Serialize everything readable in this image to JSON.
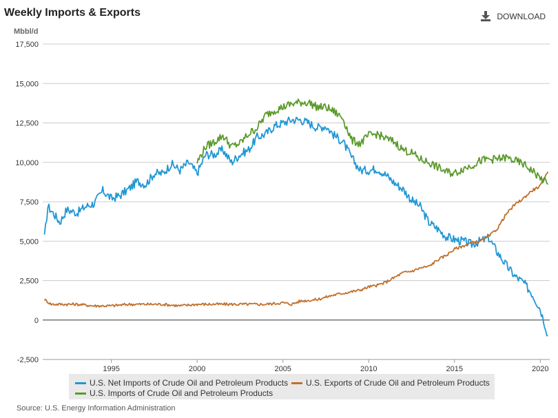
{
  "header": {
    "title": "Weekly Imports & Exports",
    "download_label": "DOWNLOAD"
  },
  "source": "Source: U.S. Energy Information Administration",
  "colors": {
    "net_imports": "#1f97d4",
    "exports": "#c0702c",
    "imports": "#5b9a2a",
    "grid": "#cccccc",
    "zero_line": "#333333"
  },
  "chart_data": {
    "type": "line",
    "title": "Weekly Imports & Exports",
    "ylabel": "Mbbl/d",
    "xlim": [
      1991.0,
      2020.55
    ],
    "ylim": [
      -2500,
      17500
    ],
    "ytick_labels": [
      "-2,500",
      "0",
      "2,500",
      "5,000",
      "7,500",
      "10,000",
      "12,500",
      "15,000",
      "17,500"
    ],
    "yticks": [
      -2500,
      0,
      2500,
      5000,
      7500,
      10000,
      12500,
      15000,
      17500
    ],
    "xticks": [
      1995,
      2000,
      2005,
      2010,
      2015,
      2020
    ],
    "xtick_labels": [
      "1995",
      "2000",
      "2005",
      "2010",
      "2015",
      "2020"
    ],
    "grid": true,
    "legend_position": "bottom",
    "series": [
      {
        "name": "U.S. Net Imports of Crude Oil and Petroleum Products",
        "color_key": "net_imports",
        "x": [
          1991.1,
          1991.3,
          1991.6,
          1992.0,
          1992.4,
          1993.0,
          1993.5,
          1994.0,
          1994.5,
          1995.0,
          1995.5,
          1996.0,
          1996.5,
          1997.0,
          1997.5,
          1998.0,
          1998.5,
          1999.0,
          1999.5,
          2000.0,
          2000.5,
          2001.0,
          2001.5,
          2002.0,
          2002.5,
          2003.0,
          2003.5,
          2004.0,
          2004.5,
          2005.0,
          2005.5,
          2006.0,
          2006.5,
          2007.0,
          2007.5,
          2008.0,
          2008.5,
          2009.0,
          2009.5,
          2010.0,
          2010.5,
          2011.0,
          2011.5,
          2012.0,
          2012.5,
          2013.0,
          2013.5,
          2014.0,
          2014.5,
          2015.0,
          2015.5,
          2016.0,
          2016.5,
          2017.0,
          2017.5,
          2018.0,
          2018.5,
          2019.0,
          2019.5,
          2020.0,
          2020.25,
          2020.45
        ],
        "y": [
          5200,
          7200,
          6800,
          6200,
          7000,
          6800,
          7200,
          7400,
          8200,
          7700,
          7900,
          8300,
          8800,
          8600,
          9300,
          9300,
          9900,
          9500,
          10000,
          9300,
          10500,
          10500,
          10800,
          10000,
          10500,
          10800,
          11600,
          11800,
          12300,
          12500,
          12700,
          12700,
          12500,
          12200,
          12300,
          11700,
          11300,
          10300,
          9500,
          9500,
          9600,
          9200,
          8700,
          8300,
          7600,
          7200,
          6200,
          5800,
          5300,
          5100,
          5000,
          4800,
          5000,
          5200,
          4300,
          3500,
          2800,
          2400,
          1700,
          700,
          -200,
          -1000
        ]
      },
      {
        "name": "U.S. Exports of Crude Oil and Petroleum Products",
        "color_key": "exports",
        "x": [
          1991.1,
          1991.5,
          1992.0,
          1993.0,
          1994.0,
          1995.0,
          1996.0,
          1997.0,
          1998.0,
          1999.0,
          2000.0,
          2001.0,
          2002.0,
          2003.0,
          2004.0,
          2005.0,
          2005.5,
          2006.0,
          2007.0,
          2008.0,
          2008.5,
          2009.0,
          2009.5,
          2010.0,
          2010.5,
          2011.0,
          2011.5,
          2012.0,
          2012.5,
          2013.0,
          2013.5,
          2014.0,
          2014.5,
          2015.0,
          2015.5,
          2016.0,
          2016.5,
          2017.0,
          2017.5,
          2018.0,
          2018.5,
          2019.0,
          2019.5,
          2020.0,
          2020.25,
          2020.45
        ],
        "y": [
          1300,
          1000,
          1000,
          1000,
          900,
          900,
          1000,
          1000,
          1000,
          900,
          1000,
          1000,
          1000,
          1000,
          1000,
          1100,
          1000,
          1200,
          1300,
          1600,
          1700,
          1800,
          1900,
          2100,
          2200,
          2400,
          2700,
          3000,
          3100,
          3300,
          3400,
          3800,
          4100,
          4500,
          4700,
          4900,
          5000,
          5300,
          5800,
          6700,
          7300,
          7700,
          8200,
          8500,
          9000,
          9400
        ]
      },
      {
        "name": "U.S. Imports of Crude Oil and Petroleum Products",
        "color_key": "imports",
        "x": [
          2000.0,
          2000.5,
          2001.0,
          2001.5,
          2002.0,
          2002.5,
          2003.0,
          2003.5,
          2004.0,
          2004.5,
          2005.0,
          2005.5,
          2006.0,
          2006.5,
          2007.0,
          2007.5,
          2008.0,
          2008.5,
          2009.0,
          2009.5,
          2010.0,
          2010.5,
          2011.0,
          2011.5,
          2012.0,
          2012.5,
          2013.0,
          2013.5,
          2014.0,
          2014.5,
          2015.0,
          2015.5,
          2016.0,
          2016.5,
          2017.0,
          2017.5,
          2018.0,
          2018.5,
          2019.0,
          2019.5,
          2020.0,
          2020.25,
          2020.45
        ],
        "y": [
          10000,
          11000,
          11300,
          11700,
          11000,
          11200,
          11800,
          12200,
          13000,
          13300,
          13500,
          13700,
          13800,
          13800,
          13500,
          13500,
          13200,
          12800,
          11400,
          11200,
          11700,
          11800,
          11500,
          11300,
          10800,
          10600,
          10200,
          10000,
          9700,
          9400,
          9300,
          9600,
          9800,
          10100,
          10200,
          10200,
          10300,
          10100,
          9900,
          9500,
          9000,
          8800,
          8600
        ]
      }
    ]
  },
  "legend": {
    "items": [
      {
        "label": "U.S. Net Imports of Crude Oil and Petroleum Products",
        "color_key": "net_imports"
      },
      {
        "label": "U.S. Exports of Crude Oil and Petroleum Products",
        "color_key": "exports"
      },
      {
        "label": "U.S. Imports of Crude Oil and Petroleum Products",
        "color_key": "imports"
      }
    ]
  }
}
